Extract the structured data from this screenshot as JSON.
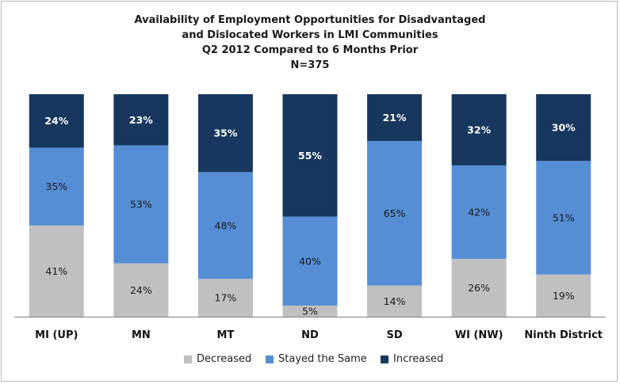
{
  "chart_data": {
    "type": "bar",
    "stacked": true,
    "title_lines": [
      "Availability of Employment Opportunities for Disadvantaged",
      "and Dislocated Workers in LMI Communities",
      "Q2 2012 Compared to 6 Months Prior",
      "N=375"
    ],
    "categories": [
      "MI (UP)",
      "MN",
      "MT",
      "ND",
      "SD",
      "WI (NW)",
      "Ninth District"
    ],
    "series": [
      {
        "name": "Decreased",
        "color": "#c0c0c0",
        "values": [
          41,
          24,
          17,
          5,
          14,
          26,
          19
        ]
      },
      {
        "name": "Stayed the Same",
        "color": "#558ed5",
        "values": [
          35,
          53,
          48,
          40,
          65,
          42,
          51
        ]
      },
      {
        "name": "Increased",
        "color": "#17375e",
        "values": [
          24,
          23,
          35,
          55,
          21,
          32,
          30
        ]
      }
    ],
    "value_suffix": "%",
    "ylim": [
      0,
      100
    ],
    "grid": false,
    "legend_position": "bottom"
  }
}
